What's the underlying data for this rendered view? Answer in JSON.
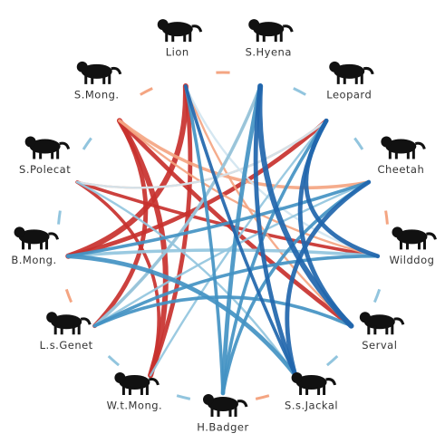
{
  "nodes": [
    {
      "label": "Lion"
    },
    {
      "label": "S.Hyena"
    },
    {
      "label": "Leopard"
    },
    {
      "label": "Cheetah"
    },
    {
      "label": "Wilddog"
    },
    {
      "label": "Serval"
    },
    {
      "label": "S.s.Jackal"
    },
    {
      "label": "H.Badger"
    },
    {
      "label": "W.t.Mong."
    },
    {
      "label": "L.s.Genet"
    },
    {
      "label": "B.Mong."
    },
    {
      "label": "S.Polecat"
    },
    {
      "label": "S.Mong."
    }
  ],
  "edges": [
    {
      "source": 12,
      "target": 8,
      "color": "#c8312e",
      "weight": 5
    },
    {
      "source": 12,
      "target": 5,
      "color": "#c8312e",
      "weight": 4
    },
    {
      "source": 0,
      "target": 10,
      "color": "#c8312e",
      "weight": 5
    },
    {
      "source": 0,
      "target": 8,
      "color": "#c8312e",
      "weight": 4
    },
    {
      "source": 10,
      "target": 2,
      "color": "#c8312e",
      "weight": 4
    },
    {
      "source": 11,
      "target": 4,
      "color": "#c8312e",
      "weight": 3
    },
    {
      "source": 12,
      "target": 9,
      "color": "#c8312e",
      "weight": 4
    },
    {
      "source": 11,
      "target": 8,
      "color": "#c8312e",
      "weight": 3
    },
    {
      "source": 12,
      "target": 3,
      "color": "#f4a582",
      "weight": 3
    },
    {
      "source": 11,
      "target": 2,
      "color": "#f4a582",
      "weight": 2
    },
    {
      "source": 9,
      "target": 1,
      "color": "#f4a582",
      "weight": 2
    },
    {
      "source": 0,
      "target": 5,
      "color": "#f4a582",
      "weight": 2
    },
    {
      "source": 12,
      "target": 4,
      "color": "#f4a582",
      "weight": 2
    },
    {
      "source": 0,
      "target": 4,
      "color": "#d1e5f0",
      "weight": 2
    },
    {
      "source": 2,
      "target": 11,
      "color": "#d1e5f0",
      "weight": 2
    },
    {
      "source": 1,
      "target": 9,
      "color": "#92c5de",
      "weight": 3
    },
    {
      "source": 3,
      "target": 9,
      "color": "#92c5de",
      "weight": 2
    },
    {
      "source": 4,
      "target": 10,
      "color": "#92c5de",
      "weight": 3
    },
    {
      "source": 2,
      "target": 8,
      "color": "#92c5de",
      "weight": 2
    },
    {
      "source": 6,
      "target": 11,
      "color": "#92c5de",
      "weight": 2
    },
    {
      "source": 1,
      "target": 7,
      "color": "#4393c3",
      "weight": 4
    },
    {
      "source": 0,
      "target": 7,
      "color": "#4393c3",
      "weight": 3
    },
    {
      "source": 2,
      "target": 7,
      "color": "#4393c3",
      "weight": 3
    },
    {
      "source": 3,
      "target": 10,
      "color": "#4393c3",
      "weight": 3
    },
    {
      "source": 4,
      "target": 9,
      "color": "#4393c3",
      "weight": 3
    },
    {
      "source": 6,
      "target": 10,
      "color": "#4393c3",
      "weight": 4
    },
    {
      "source": 5,
      "target": 9,
      "color": "#4393c3",
      "weight": 3
    },
    {
      "source": 7,
      "target": 3,
      "color": "#4393c3",
      "weight": 3
    },
    {
      "source": 1,
      "target": 5,
      "color": "#2166ac",
      "weight": 5
    },
    {
      "source": 2,
      "target": 5,
      "color": "#2166ac",
      "weight": 4
    },
    {
      "source": 1,
      "target": 6,
      "color": "#2166ac",
      "weight": 4
    },
    {
      "source": 3,
      "target": 6,
      "color": "#2166ac",
      "weight": 4
    },
    {
      "source": 0,
      "target": 6,
      "color": "#2166ac",
      "weight": 3
    },
    {
      "source": 2,
      "target": 4,
      "color": "#2166ac",
      "weight": 4
    }
  ]
}
